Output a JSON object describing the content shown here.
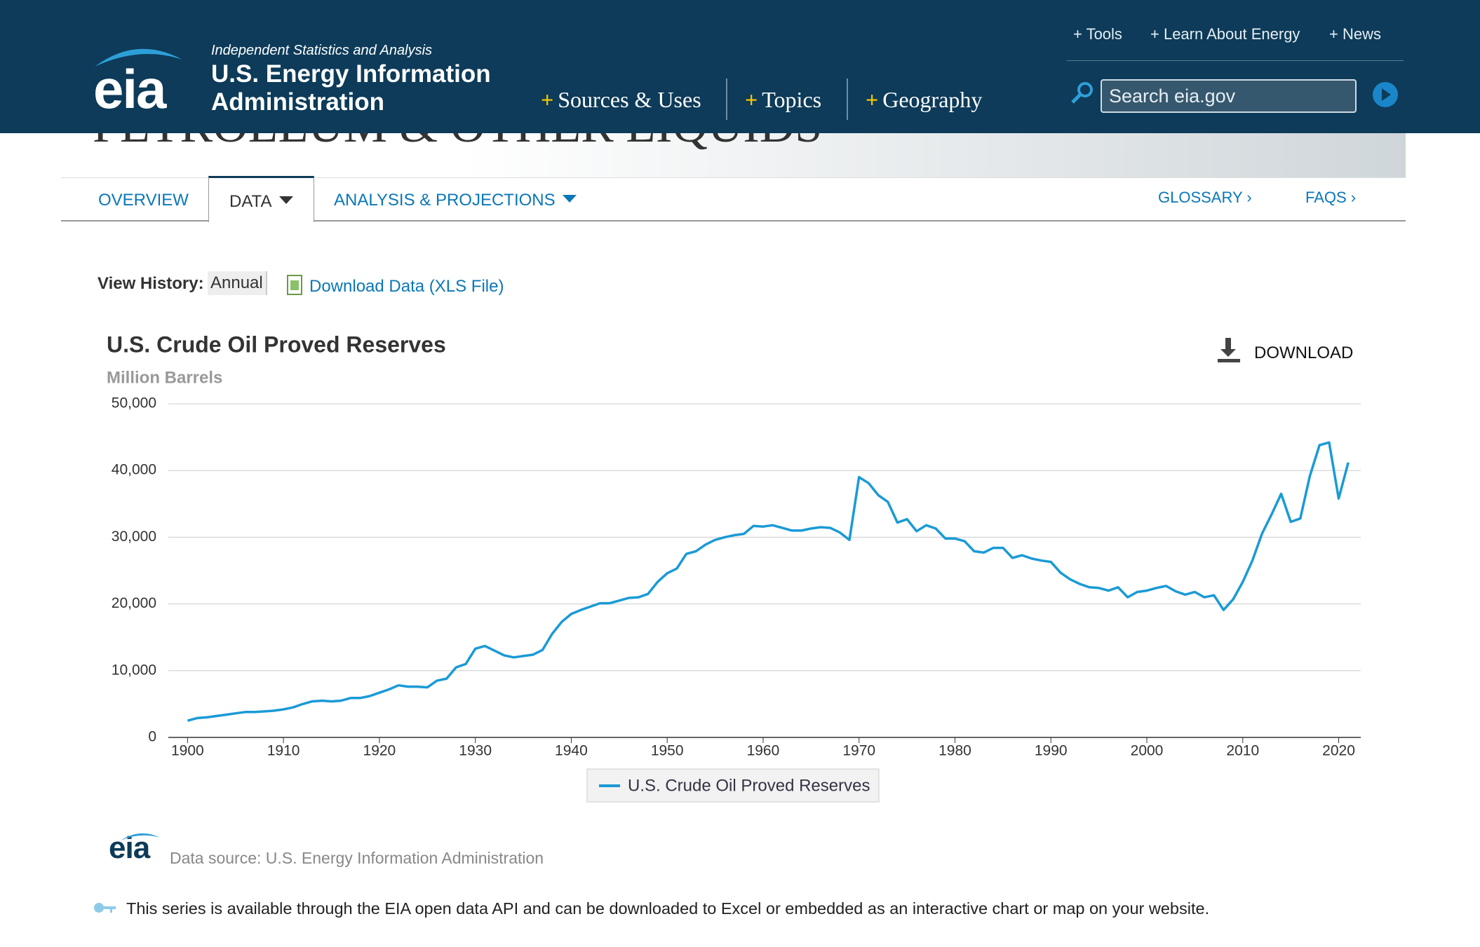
{
  "header": {
    "logo": "eia",
    "tagline": "Independent Statistics and Analysis",
    "agency_line1": "U.S. Energy Information",
    "agency_line2": "Administration",
    "top_links": [
      "+ Tools",
      "+ Learn About Energy",
      "+ News"
    ],
    "nav": [
      "Sources & Uses",
      "Topics",
      "Geography"
    ],
    "nav_prefix": "+",
    "search_placeholder": "Search eia.gov"
  },
  "banner": {
    "title": "PETROLEUM & OTHER LIQUIDS"
  },
  "tabs": {
    "left": [
      "OVERVIEW",
      "DATA",
      "ANALYSIS & PROJECTIONS"
    ],
    "right": [
      "GLOSSARY ›",
      "FAQS ›"
    ]
  },
  "toolbar": {
    "view_history_label": "View History:",
    "frequency": "Annual",
    "download_link": "Download Data (XLS File)"
  },
  "download_button": "DOWNLOAD",
  "chart_data": {
    "type": "line",
    "title": "U.S. Crude Oil Proved Reserves",
    "subtitle": "Million Barrels",
    "x": [
      1900,
      1901,
      1902,
      1903,
      1904,
      1905,
      1906,
      1907,
      1908,
      1909,
      1910,
      1911,
      1912,
      1913,
      1914,
      1915,
      1916,
      1917,
      1918,
      1919,
      1920,
      1921,
      1922,
      1923,
      1924,
      1925,
      1926,
      1927,
      1928,
      1929,
      1930,
      1931,
      1932,
      1933,
      1934,
      1935,
      1936,
      1937,
      1938,
      1939,
      1940,
      1941,
      1942,
      1943,
      1944,
      1945,
      1946,
      1947,
      1948,
      1949,
      1950,
      1951,
      1952,
      1953,
      1954,
      1955,
      1956,
      1957,
      1958,
      1959,
      1960,
      1961,
      1962,
      1963,
      1964,
      1965,
      1966,
      1967,
      1968,
      1969,
      1970,
      1971,
      1972,
      1973,
      1974,
      1975,
      1976,
      1977,
      1978,
      1979,
      1980,
      1981,
      1982,
      1983,
      1984,
      1985,
      1986,
      1987,
      1988,
      1989,
      1990,
      1991,
      1992,
      1993,
      1994,
      1995,
      1996,
      1997,
      1998,
      1999,
      2000,
      2001,
      2002,
      2003,
      2004,
      2005,
      2006,
      2007,
      2008,
      2009,
      2010,
      2011,
      2012,
      2013,
      2014,
      2015,
      2016,
      2017,
      2018,
      2019,
      2020,
      2021
    ],
    "series": [
      {
        "name": "U.S. Crude Oil Proved Reserves",
        "color": "#1a9ad6",
        "values": [
          2500,
          2900,
          3000,
          3200,
          3400,
          3600,
          3800,
          3800,
          3900,
          4000,
          4200,
          4500,
          5000,
          5400,
          5500,
          5400,
          5500,
          5900,
          5900,
          6200,
          6700,
          7200,
          7800,
          7600,
          7600,
          7500,
          8500,
          8800,
          10500,
          11000,
          13300,
          13700,
          13000,
          12300,
          12000,
          12200,
          12400,
          13100,
          15500,
          17300,
          18500,
          19100,
          19600,
          20100,
          20100,
          20500,
          20900,
          21000,
          21500,
          23300,
          24600,
          25300,
          27500,
          27900,
          28900,
          29600,
          30000,
          30300,
          30500,
          31700,
          31600,
          31800,
          31400,
          31000,
          31000,
          31300,
          31500,
          31400,
          30700,
          29600,
          39000,
          38100,
          36300,
          35300,
          32200,
          32700,
          30900,
          31800,
          31300,
          29800,
          29800,
          29400,
          27900,
          27700,
          28400,
          28400,
          26900,
          27300,
          26800,
          26500,
          26300,
          24700,
          23700,
          23000,
          22500,
          22400,
          22000,
          22500,
          21000,
          21800,
          22000,
          22400,
          22700,
          21900,
          21400,
          21800,
          21000,
          21300,
          19100,
          20700,
          23300,
          26500,
          30500,
          33400,
          36500,
          32300,
          32800,
          39200,
          43800,
          44200,
          35800,
          41200
        ]
      }
    ],
    "xlim": [
      1898,
      2022.3
    ],
    "xticks": [
      1900,
      1910,
      1920,
      1930,
      1940,
      1950,
      1960,
      1970,
      1980,
      1990,
      2000,
      2010,
      2020
    ],
    "ylim": [
      0,
      50000
    ],
    "yticks": [
      0,
      {
        "value": 10000,
        "label": "10,000"
      },
      {
        "value": 20000,
        "label": "20,000"
      },
      {
        "value": 30000,
        "label": "30,000"
      },
      {
        "value": 40000,
        "label": "40,000"
      },
      {
        "value": 50000,
        "label": "50,000"
      }
    ],
    "grid": true,
    "legend": "bottom"
  },
  "footer": {
    "logo": "eia",
    "source": "Data source: U.S. Energy Information Administration",
    "api_note": "This series is available through the EIA open data API and can be downloaded to Excel or embedded as an interactive chart or map on your website."
  }
}
